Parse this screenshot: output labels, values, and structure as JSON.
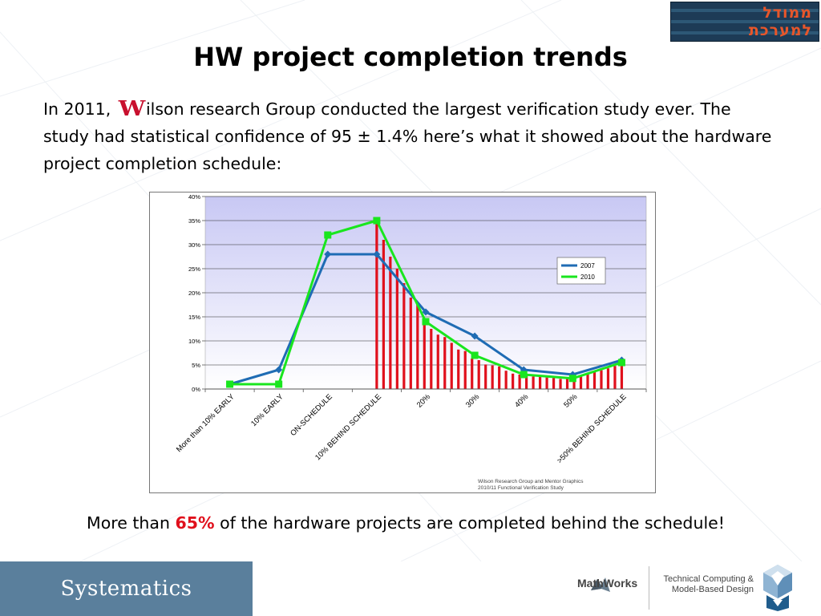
{
  "header": {
    "logo_text_line1": "ממודל",
    "logo_text_line2": "למערכת"
  },
  "title": "HW project completion trends",
  "intro": {
    "before_logo": "In 2011, ",
    "logo_letter": "W",
    "after_logo": "ilson research Group conducted the largest verification study ever. The study had statistical confidence of 95 ± 1.4% here’s what it showed about the hardware project completion schedule:"
  },
  "chart_data": {
    "type": "line",
    "categories": [
      "More than 10% EARLY",
      "10% EARLY",
      "ON-SCHEDULE",
      "10% BEHIND SCHEDULE",
      "20%",
      "30%",
      "40%",
      "50%",
      ">50% BEHIND SCHEDULE"
    ],
    "y_ticks": [
      "0%",
      "5%",
      "10%",
      "15%",
      "20%",
      "25%",
      "30%",
      "35%",
      "40%"
    ],
    "ylim": [
      0,
      40
    ],
    "grid": true,
    "legend_position": "right",
    "series": [
      {
        "name": "2007",
        "color": "#1f6cb4",
        "values": [
          1,
          4,
          28,
          28,
          16,
          11,
          4,
          3,
          6
        ]
      },
      {
        "name": "2010",
        "color": "#19e61e",
        "values": [
          1,
          1,
          32,
          35,
          14,
          7,
          3,
          2.2,
          5.5
        ]
      }
    ],
    "shading": {
      "color": "#e0101c",
      "values": [
        35,
        31,
        27.5,
        25,
        22,
        19,
        17.5,
        14.5,
        12.5,
        11.3,
        10.8,
        9.6,
        8.2,
        7.9,
        6.3,
        6,
        5.1,
        4.9,
        4.7,
        3.8,
        3.2,
        3,
        2.8,
        2.6,
        2.5,
        2.4,
        2.3,
        2.1,
        2.1,
        2.3,
        2.8,
        3.2,
        3.5,
        3.9,
        4.3,
        4.8,
        5.5
      ]
    },
    "source_line1": "Wilson Research Group and Mentor Graphics",
    "source_line2": "2010/11 Functional Verification Study"
  },
  "conclusion": {
    "before": "More than ",
    "highlight": "65%",
    "after": " of the hardware projects are completed behind the schedule!"
  },
  "footer": {
    "left_brand": "Systematics",
    "mathworks": "MathWorks",
    "tagline_line1": "Technical Computing &",
    "tagline_line2": "Model-Based Design"
  },
  "colors": {
    "footer_blue": "#5a7f9c",
    "plot_gradient_top": "#c8c8f4",
    "plot_gradient_bottom": "#ffffff",
    "accent_red": "#e0101c"
  }
}
